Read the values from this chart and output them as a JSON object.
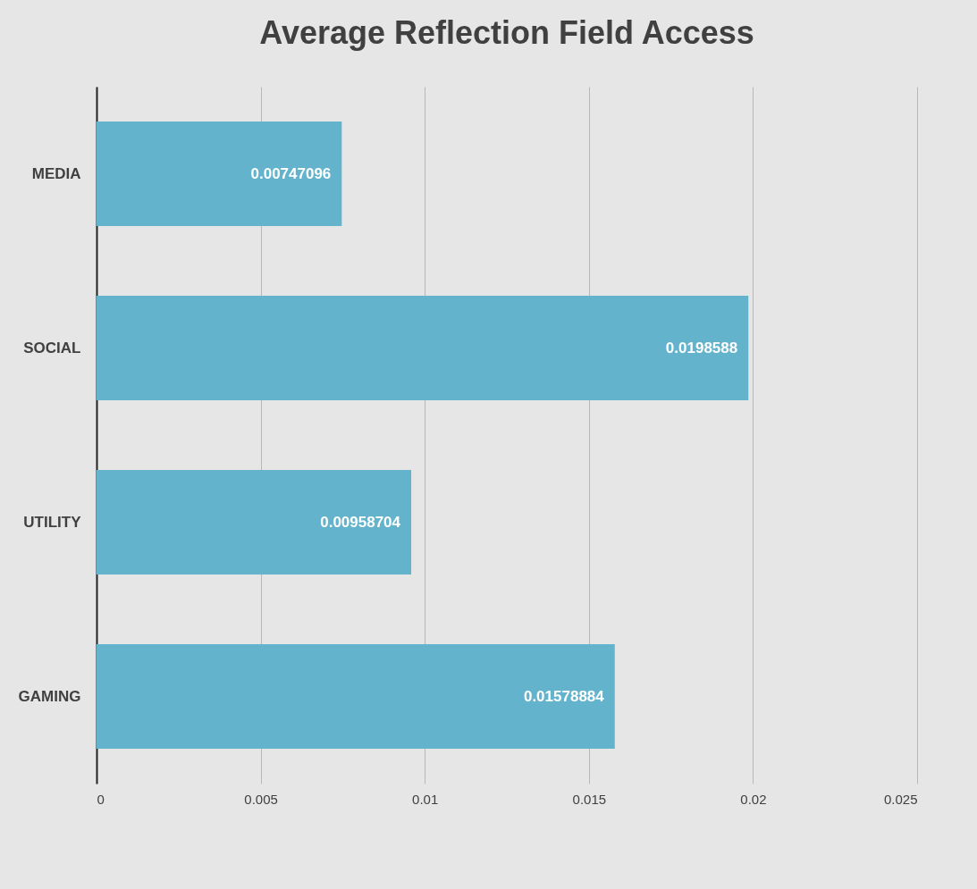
{
  "chart_data": {
    "type": "bar",
    "orientation": "horizontal",
    "title": "Average Reflection Field Access",
    "categories": [
      "MEDIA",
      "SOCIAL",
      "UTILITY",
      "GAMING"
    ],
    "values": [
      0.00747096,
      0.0198588,
      0.00958704,
      0.01578884
    ],
    "color": "#62b3cb",
    "xlim": [
      0,
      0.025
    ],
    "xticks": [
      0,
      0.005,
      0.01,
      0.015,
      0.02,
      0.025
    ],
    "grid": "x",
    "data_labels": true
  }
}
